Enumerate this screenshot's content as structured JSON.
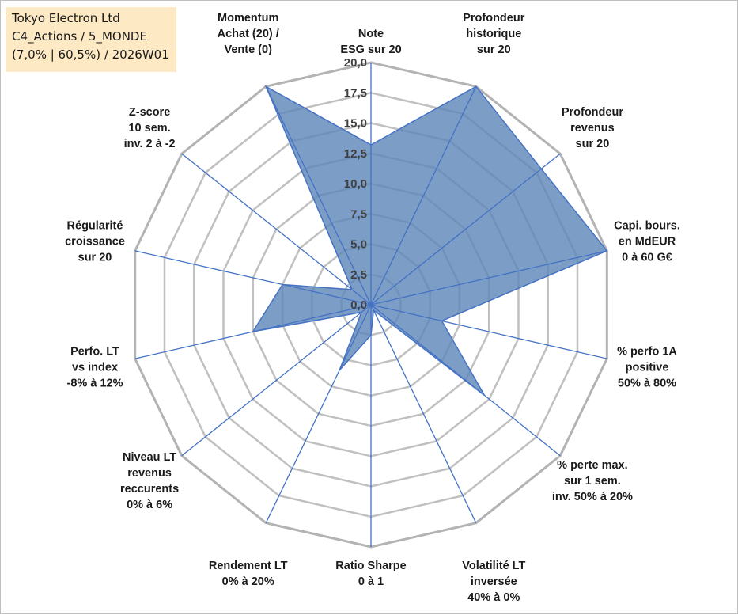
{
  "info_box": {
    "line1": "Tokyo Electron Ltd",
    "line2": "C4_Actions / 5_MONDE",
    "line3": "(7,0% | 60,5%) / 2026W01"
  },
  "colors": {
    "fill": "#5b84b8",
    "fill_opacity": 0.8,
    "series_line": "#4472c4",
    "spokes": "#4472c4",
    "grid": "#c0c0c0",
    "outer_ring": "#b3b3b3",
    "info_box_bg": "#fde9c4"
  },
  "chart_data": {
    "type": "radar",
    "rlim": [
      0,
      20
    ],
    "ticks": [
      "0,0",
      "2,5",
      "5,0",
      "7,5",
      "10,0",
      "12,5",
      "15,0",
      "17,5",
      "20,0"
    ],
    "axes": [
      [
        "Note",
        "ESG sur 20"
      ],
      [
        "Profondeur",
        "historique",
        "sur 20"
      ],
      [
        "Profondeur",
        "revenus",
        "sur 20"
      ],
      [
        "Capi. bours.",
        "en MdEUR",
        "0 à 60 G€"
      ],
      [
        "% perfo 1A",
        "positive",
        "50% à 80%"
      ],
      [
        "% perte max.",
        "sur 1 sem.",
        "inv. 50% à 20%"
      ],
      [
        "Volatilité LT",
        "inversée",
        "40% à 0%"
      ],
      [
        "Ratio Sharpe",
        "0 à 1"
      ],
      [
        "Rendement LT",
        "0% à 20%"
      ],
      [
        "Niveau LT",
        "revenus",
        "reccurents",
        "0% à 6%"
      ],
      [
        "Perfo. LT",
        "vs index",
        "-8% à 12%"
      ],
      [
        "Régularité",
        "croissance",
        "sur 20"
      ],
      [
        "Z-score",
        "10 sem.",
        "inv. 2 à -2"
      ],
      [
        "Momentum",
        "Achat (20) /",
        "Vente (0)"
      ]
    ],
    "series": [
      {
        "values": [
          13.2,
          20,
          18,
          20,
          6,
          12,
          0.5,
          2.5,
          6,
          1,
          10,
          7.5,
          2,
          20
        ]
      }
    ],
    "grid": true,
    "legend": "none"
  }
}
